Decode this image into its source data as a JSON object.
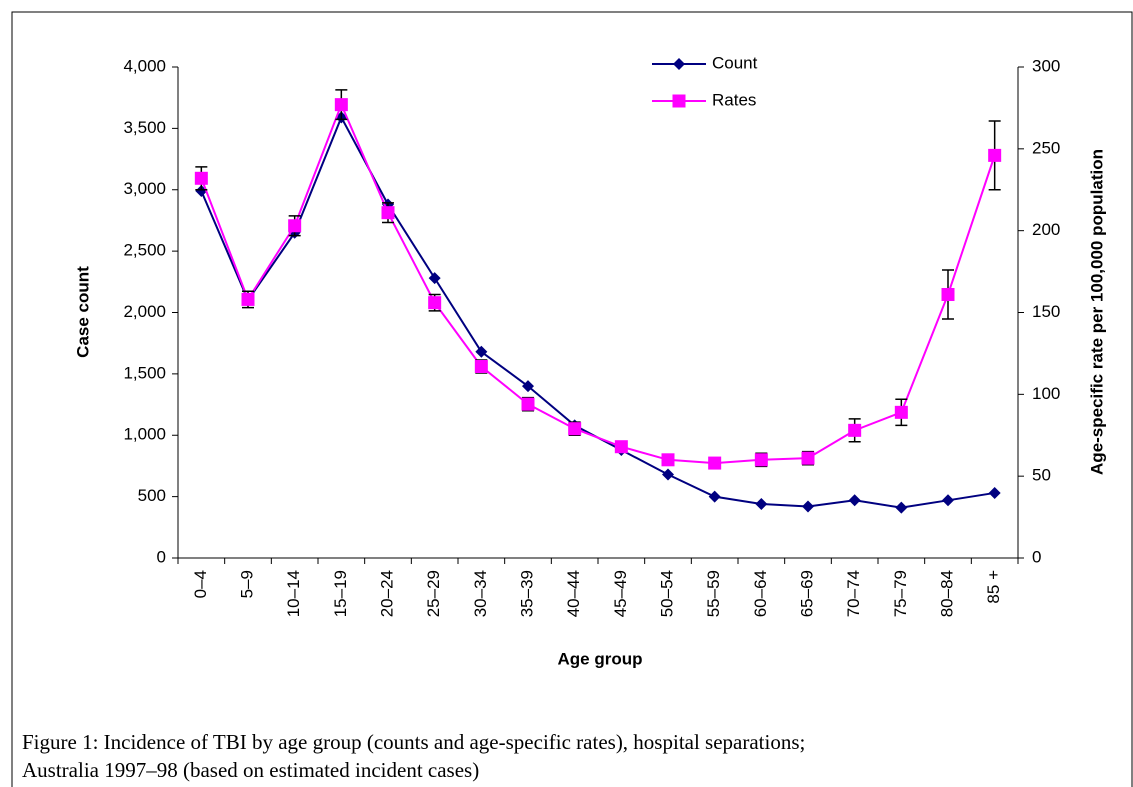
{
  "chart_data": {
    "type": "line",
    "categories": [
      "0–4",
      "5–9",
      "10–14",
      "15–19",
      "20–24",
      "25–29",
      "30–34",
      "35–39",
      "40–44",
      "45–49",
      "50–54",
      "55–59",
      "60–64",
      "65–69",
      "70–74",
      "75–79",
      "80–84",
      "85 +"
    ],
    "series": [
      {
        "name": "Count",
        "color": "#000080",
        "marker": "diamond",
        "values": [
          2990,
          2100,
          2650,
          3590,
          2880,
          2280,
          1680,
          1400,
          1080,
          880,
          680,
          500,
          440,
          420,
          470,
          410,
          470,
          530
        ]
      },
      {
        "name": "Rates",
        "color": "#ff00ff",
        "marker": "square",
        "axis": "y2",
        "values": [
          232,
          158,
          203,
          277,
          211,
          156,
          117,
          94,
          79,
          68,
          60,
          58,
          60,
          61,
          78,
          89,
          161,
          246
        ],
        "errors": [
          7,
          5,
          6,
          9,
          6,
          5,
          4,
          4,
          4,
          3,
          3,
          3,
          4,
          4,
          7,
          8,
          15,
          21
        ]
      }
    ],
    "ylim": [
      0,
      4000
    ],
    "yticks": [
      0,
      500,
      {
        "value": 1000,
        "label": "1,000"
      },
      {
        "value": 1500,
        "label": "1,500"
      },
      {
        "value": 2000,
        "label": "2,000"
      },
      {
        "value": 2500,
        "label": "2,500"
      },
      {
        "value": 3000,
        "label": "3,000"
      },
      {
        "value": 3500,
        "label": "3,500"
      },
      {
        "value": 4000,
        "label": "4,000"
      }
    ],
    "y2lim": [
      0,
      300
    ],
    "y2ticks": [
      0,
      50,
      100,
      150,
      200,
      250,
      300
    ],
    "xlabel": "Age group",
    "ylabel": "Case count",
    "y2label": "Age-specific rate per 100,000 population",
    "caption": [
      "Figure 1:  Incidence of TBI by age group (counts and age-specific rates), hospital separations;",
      "Australia 1997–98 (based on estimated incident cases)"
    ]
  }
}
